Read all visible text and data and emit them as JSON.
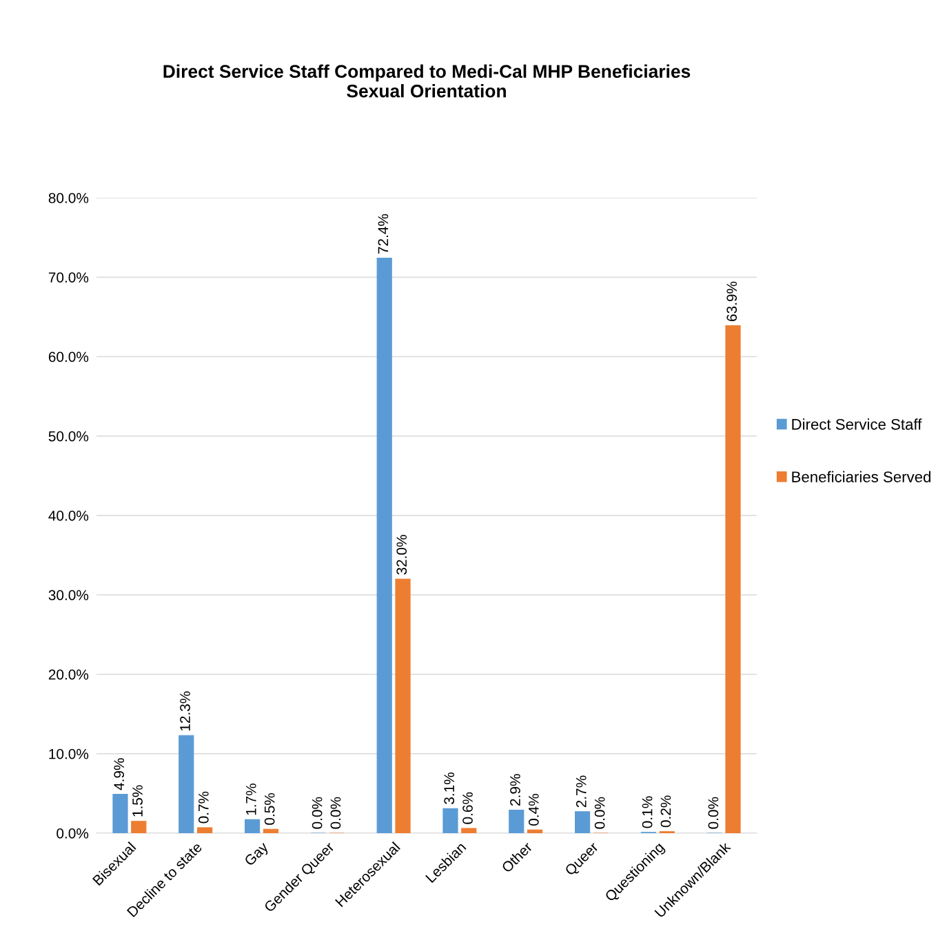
{
  "chart_data": {
    "type": "bar",
    "title": "Direct Service Staff Compared to Medi-Cal MHP Beneficiaries\nSexual Orientation",
    "categories": [
      "Bisexual",
      "Decline to state",
      "Gay",
      "Gender Queer",
      "Heterosexual",
      "Lesbian",
      "Other",
      "Queer",
      "Questioning",
      "Unknown/Blank"
    ],
    "series": [
      {
        "name": "Direct Service Staff",
        "color": "#5b9bd5",
        "values": [
          4.9,
          12.3,
          1.7,
          0.0,
          72.4,
          3.1,
          2.9,
          2.7,
          0.1,
          0.0
        ],
        "value_labels": [
          "4.9%",
          "12.3%",
          "1.7%",
          "0.0%",
          "72.4%",
          "3.1%",
          "2.9%",
          "2.7%",
          "0.1%",
          "0.0%"
        ]
      },
      {
        "name": "Beneficiaries Served",
        "color": "#ed7d31",
        "values": [
          1.5,
          0.7,
          0.5,
          0.0,
          32.0,
          0.6,
          0.4,
          0.0,
          0.2,
          63.9
        ],
        "value_labels": [
          "1.5%",
          "0.7%",
          "0.5%",
          "0.0%",
          "32.0%",
          "0.6%",
          "0.4%",
          "0.0%",
          "0.2%",
          "63.9%"
        ]
      }
    ],
    "ylim": [
      0,
      80
    ],
    "yticks": [
      {
        "value": 0,
        "label": "0.0%"
      },
      {
        "value": 10,
        "label": "10.0%"
      },
      {
        "value": 20,
        "label": "20.0%"
      },
      {
        "value": 30,
        "label": "30.0%"
      },
      {
        "value": 40,
        "label": "40.0%"
      },
      {
        "value": 50,
        "label": "50.0%"
      },
      {
        "value": 60,
        "label": "60.0%"
      },
      {
        "value": 70,
        "label": "70.0%"
      },
      {
        "value": 80,
        "label": "80.0%"
      }
    ],
    "grid": "y",
    "legend": "right"
  }
}
